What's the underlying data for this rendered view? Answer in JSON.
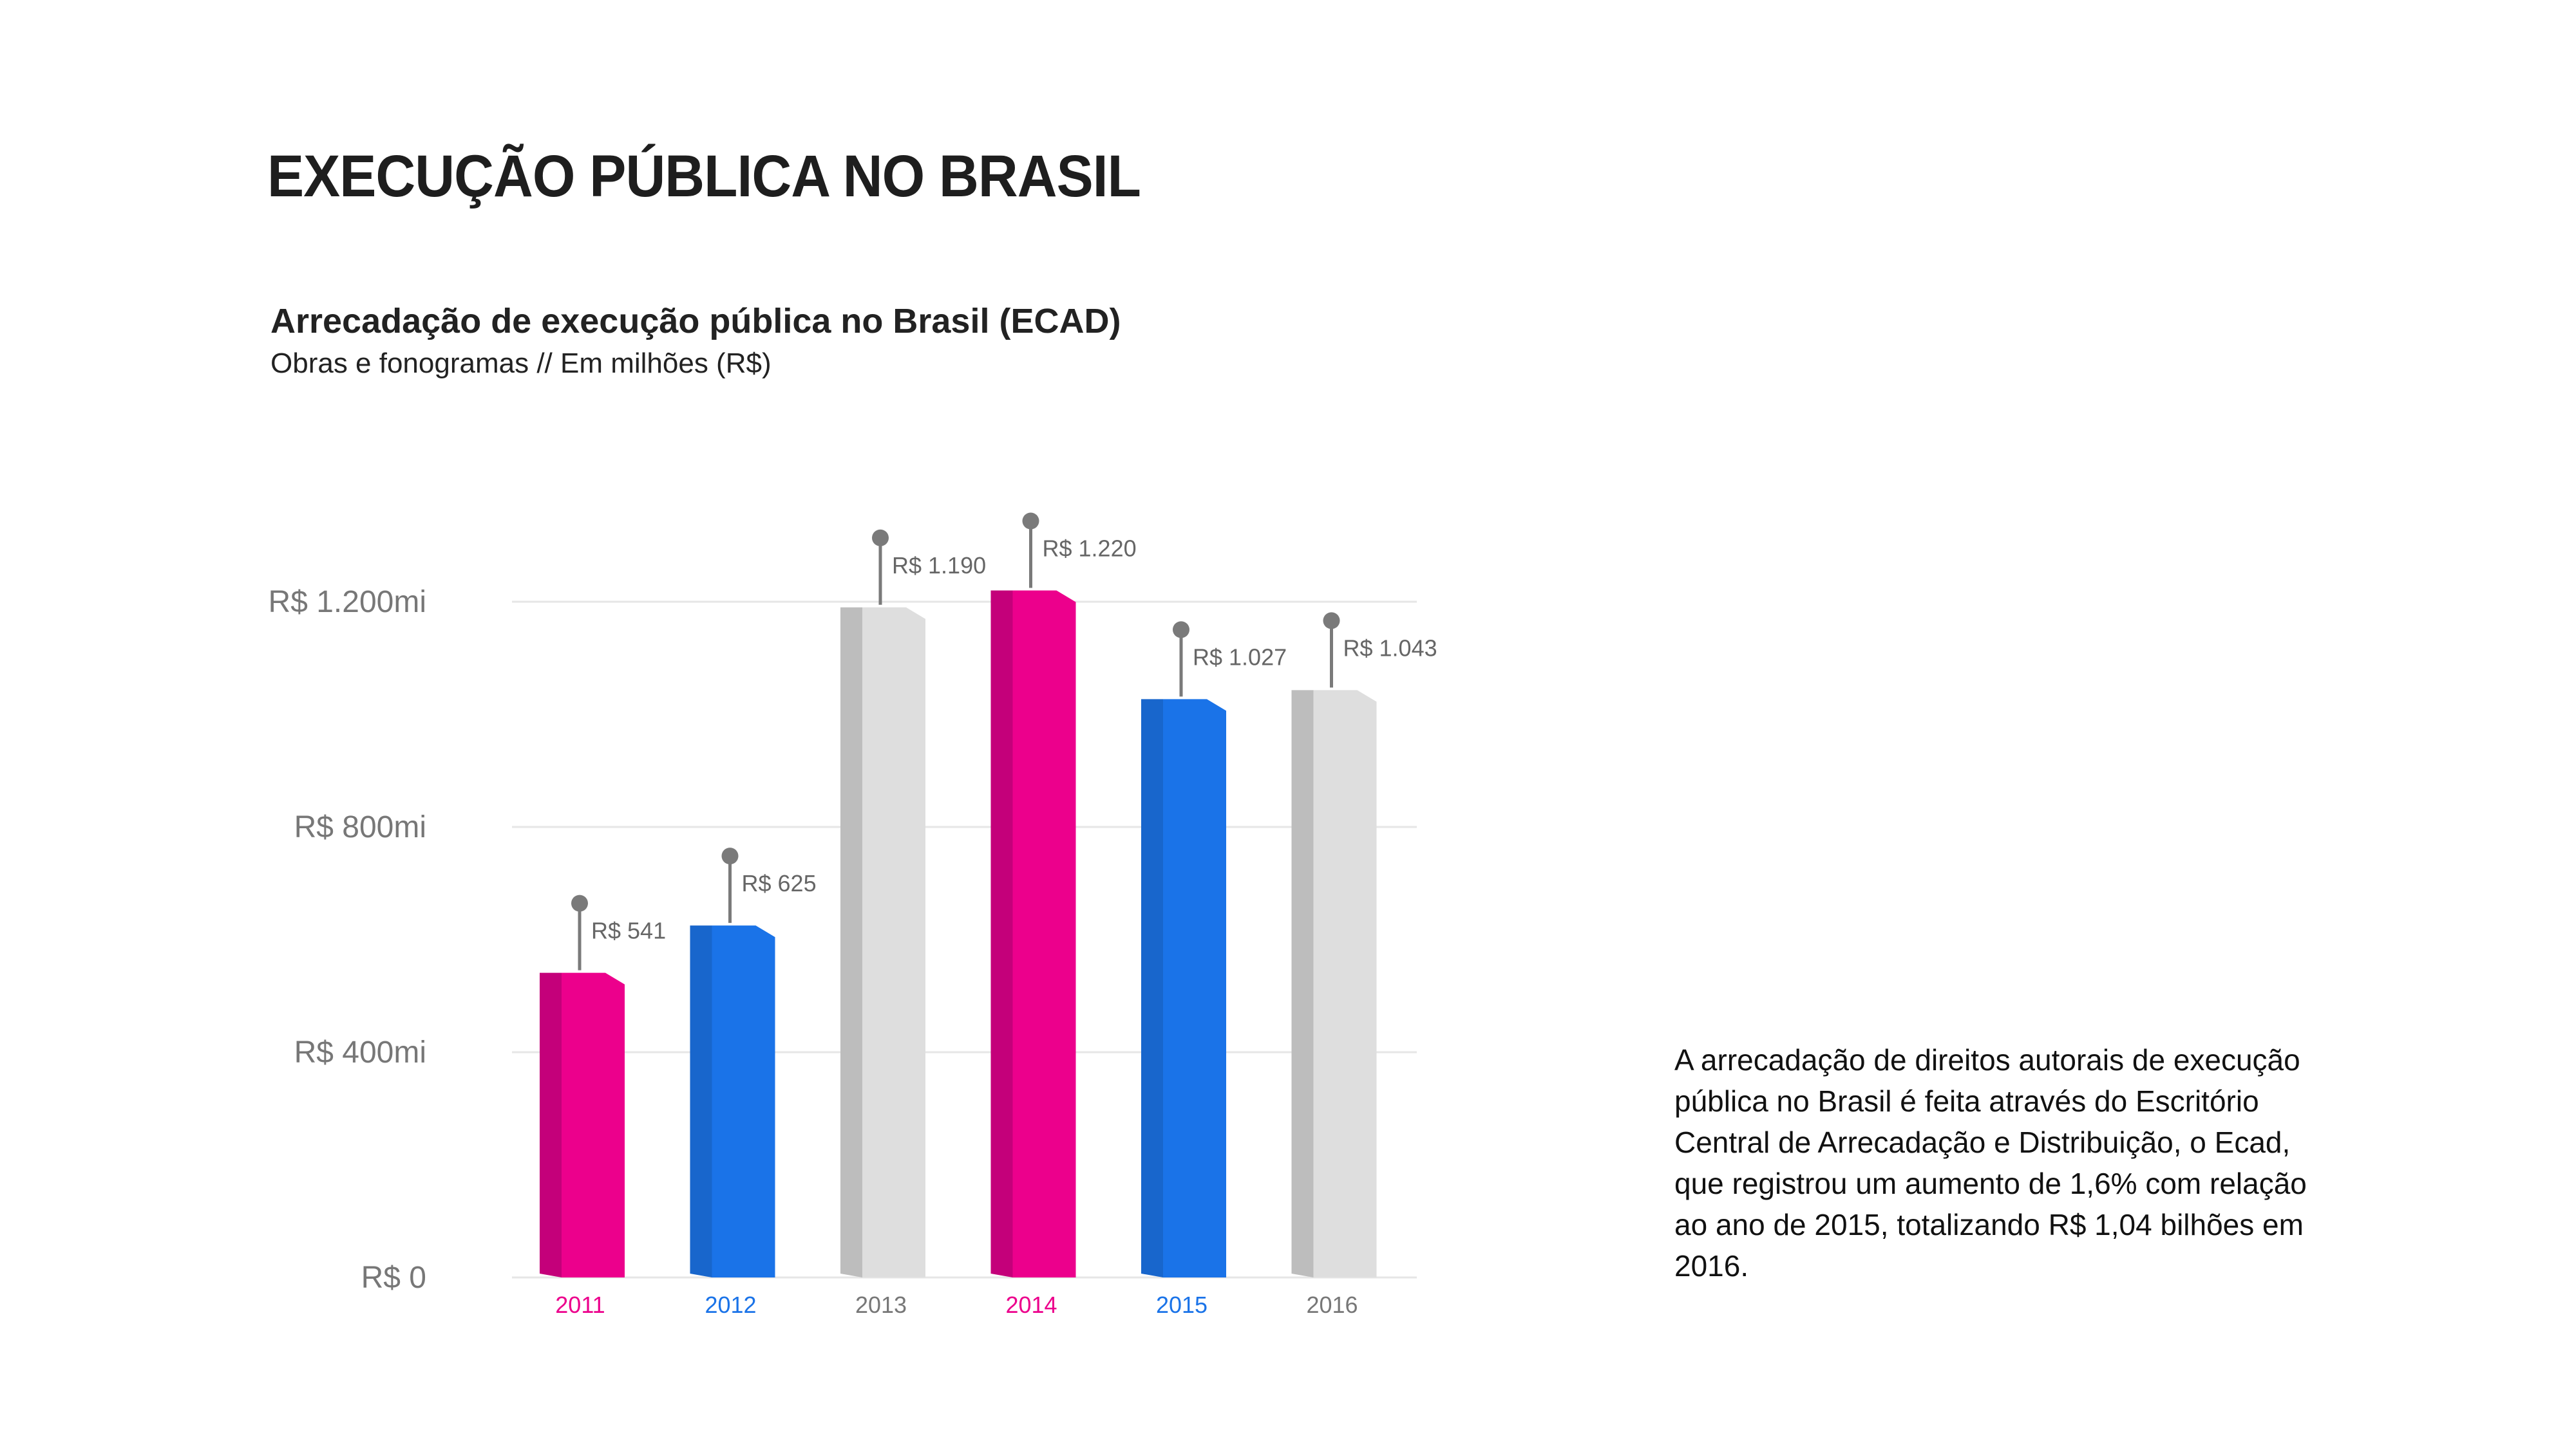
{
  "page": {
    "title": "EXECUÇÃO PÚBLICA NO BRASIL",
    "paragraph": "A arrecadação de direitos autorais de execução pública no Brasil é feita através do Escritório Central de Arrecadação e Distribuição, o Ecad, que registrou um aumento de 1,6% com relação ao ano de 2015, totalizando R$ 1,04 bilhões em 2016."
  },
  "chart_data": {
    "type": "bar",
    "title": "Arrecadação de execução pública no Brasil (ECAD)",
    "subtitle": "Obras e fonogramas // Em milhões (R$)",
    "categories": [
      "2011",
      "2012",
      "2013",
      "2014",
      "2015",
      "2016"
    ],
    "values": [
      541,
      625,
      1190,
      1220,
      1027,
      1043
    ],
    "value_labels": [
      "R$ 541",
      "R$ 625",
      "R$ 1.190",
      "R$ 1.220",
      "R$ 1.027",
      "R$ 1.043"
    ],
    "y_ticks": [
      0,
      400,
      800,
      1200
    ],
    "y_tick_labels": [
      "R$ 0",
      "R$ 400mi",
      "R$ 800mi",
      "R$ 1.200mi"
    ],
    "ylim": [
      0,
      1320
    ],
    "grid": true,
    "legend": "none",
    "bar_colors": [
      "#ec008c",
      "#1a73e8",
      "#dedede",
      "#ec008c",
      "#1a73e8",
      "#dedede"
    ],
    "bar_side_colors": [
      "#c4007a",
      "#1866cc",
      "#bdbdbd",
      "#c4007a",
      "#1866cc",
      "#bdbdbd"
    ],
    "tick_label_colors": [
      "#ec008c",
      "#1a73e8",
      "#777777",
      "#ec008c",
      "#1a73e8",
      "#777777"
    ],
    "gridline_color": "#e6e6e6",
    "pin_color": "#7a7a7a"
  }
}
